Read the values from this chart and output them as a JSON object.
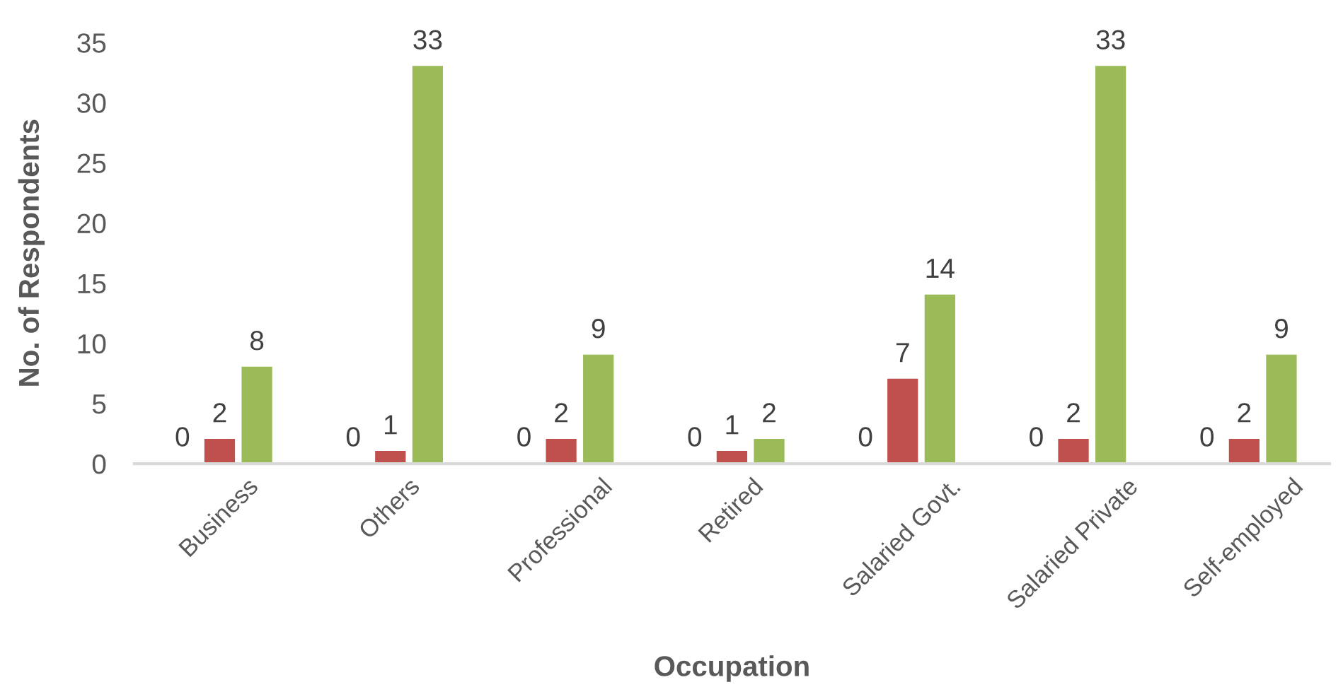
{
  "chart_data": {
    "type": "bar",
    "xlabel": "Occupation",
    "ylabel": "No. of Respondents",
    "categories": [
      "Business",
      "Others",
      "Professional",
      "Retired",
      "Salaried Govt.",
      "Salaried Private",
      "Self-employed"
    ],
    "series": [
      {
        "color": "#4f81bd",
        "values": [
          0,
          0,
          0,
          0,
          0,
          0,
          0
        ]
      },
      {
        "color": "#c0504d",
        "values": [
          2,
          1,
          2,
          1,
          7,
          2,
          2
        ]
      },
      {
        "color": "#9bbb59",
        "values": [
          8,
          33,
          9,
          2,
          14,
          33,
          9
        ]
      }
    ],
    "ylim": [
      0,
      35
    ],
    "yticks": [
      0,
      5,
      10,
      15,
      20,
      25,
      30,
      35
    ],
    "data_labels": true
  }
}
